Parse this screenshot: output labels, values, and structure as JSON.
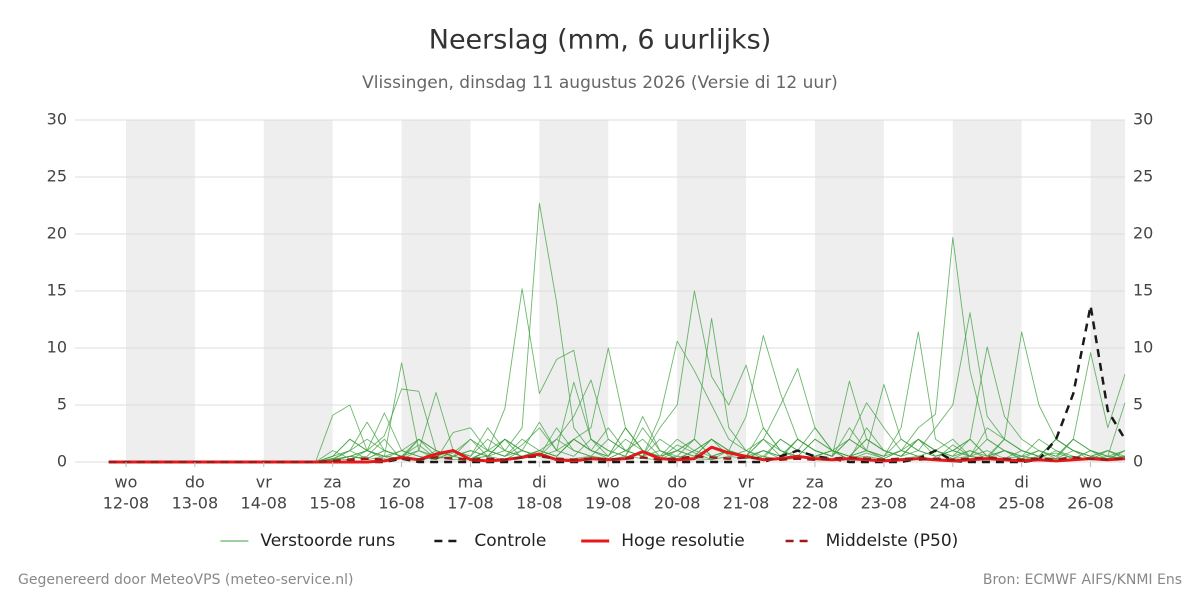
{
  "chart_data": {
    "type": "line",
    "title": "Neerslag (mm, 6 uurlijks)",
    "subtitle": "Vlissingen, dinsdag 11 augustus 2026 (Versie di 12 uur)",
    "footer_left": "Gegenereerd door MeteoVPS (meteo-service.nl)",
    "footer_right": "Bron: ECMWF AIFS/KNMI Ens",
    "xlim": [
      11.26,
      26.5
    ],
    "ylim": [
      0,
      30
    ],
    "yticks": [
      0,
      5,
      10,
      15,
      20,
      25,
      30
    ],
    "right_axis_labels": true,
    "grid": true,
    "shade_alternate_days": true,
    "xticks": [
      {
        "value": 12,
        "label": "12-08"
      },
      {
        "value": 13,
        "label": "13-08"
      },
      {
        "value": 14,
        "label": "14-08"
      },
      {
        "value": 15,
        "label": "15-08"
      },
      {
        "value": 16,
        "label": "16-08"
      },
      {
        "value": 17,
        "label": "17-08"
      },
      {
        "value": 18,
        "label": "18-08"
      },
      {
        "value": 19,
        "label": "19-08"
      },
      {
        "value": 20,
        "label": "20-08"
      },
      {
        "value": 21,
        "label": "21-08"
      },
      {
        "value": 22,
        "label": "22-08"
      },
      {
        "value": 23,
        "label": "23-08"
      },
      {
        "value": 24,
        "label": "24-08"
      },
      {
        "value": 25,
        "label": "25-08"
      },
      {
        "value": 26,
        "label": "26-08"
      }
    ],
    "xtick_weekdays": [
      "wo",
      "do",
      "vr",
      "za",
      "zo",
      "ma",
      "di",
      "wo",
      "do",
      "vr",
      "za",
      "zo",
      "ma",
      "di",
      "wo"
    ],
    "x": [
      11.75,
      12,
      12.25,
      12.5,
      12.75,
      13,
      13.25,
      13.5,
      13.75,
      14,
      14.25,
      14.5,
      14.75,
      15,
      15.25,
      15.5,
      15.75,
      16,
      16.25,
      16.5,
      16.75,
      17,
      17.25,
      17.5,
      17.75,
      18,
      18.25,
      18.5,
      18.75,
      19,
      19.25,
      19.5,
      19.75,
      20,
      20.25,
      20.5,
      20.75,
      21,
      21.25,
      21.5,
      21.75,
      22,
      22.25,
      22.5,
      22.75,
      23,
      23.25,
      23.5,
      23.75,
      24,
      24.25,
      24.5,
      24.75,
      25,
      25.25,
      25.5,
      25.75,
      26,
      26.25,
      26.5
    ],
    "legend_position": "bottom",
    "series": [
      {
        "name": "Verstoorde runs",
        "color": "#3c9f3c",
        "style": "thin",
        "members": [
          [
            0,
            0,
            0,
            0,
            0,
            0,
            0,
            0,
            0,
            0,
            0,
            0,
            0,
            0.2,
            1,
            2,
            1,
            0.5,
            1.5,
            0.3,
            0.8,
            2,
            0.5,
            1,
            3,
            22.7,
            14,
            3,
            1,
            0.5,
            2,
            1,
            0.3,
            1.5,
            0.8,
            0.2,
            1,
            0.5,
            2,
            1,
            0.3,
            0.5,
            1,
            0.2,
            0.8,
            0.3,
            1,
            0.5,
            0.2,
            1.5,
            0.5,
            0.3,
            1,
            0.2,
            0.5,
            0.8,
            0.3,
            1,
            0.2,
            0.5
          ],
          [
            0,
            0,
            0,
            0,
            0,
            0,
            0,
            0,
            0,
            0,
            0,
            0,
            0,
            4.1,
            5,
            1,
            0.5,
            0.3,
            2,
            1,
            0.5,
            0.2,
            1,
            0.5,
            1.5,
            3,
            1,
            7,
            2,
            0.5,
            3,
            1,
            0.2,
            1,
            2,
            0.5,
            1,
            0.3,
            1,
            0.5,
            2,
            1,
            0.5,
            2,
            1,
            0.5,
            1,
            3,
            4.2,
            19.7,
            8,
            2,
            1,
            0.5,
            2,
            1,
            0.3,
            1,
            0.5,
            5.2
          ],
          [
            0,
            0,
            0,
            0,
            0,
            0,
            0,
            0,
            0,
            0,
            0,
            0,
            0,
            0.5,
            2,
            1,
            4.3,
            1,
            0.5,
            0.2,
            2.6,
            3,
            1,
            4.7,
            15.2,
            6,
            9,
            9.8,
            2,
            1,
            0.5,
            3,
            1,
            0.2,
            1,
            2,
            0.5,
            1,
            0.3,
            2,
            1,
            0.5,
            1,
            0.2,
            3,
            1,
            0.5,
            2,
            1,
            0.3,
            1,
            0.5,
            2,
            1,
            0.5,
            0.3,
            1,
            0.2,
            0.5,
            1
          ],
          [
            0,
            0,
            0,
            0,
            0,
            0,
            0,
            0,
            0,
            0,
            0,
            0,
            0,
            1,
            0.3,
            0.5,
            2,
            0.2,
            1,
            0.5,
            1,
            0.3,
            0.5,
            2,
            1,
            0.5,
            3,
            1,
            0.5,
            2,
            1,
            0.5,
            3,
            5,
            15,
            7.5,
            5,
            8.5,
            3,
            1,
            0.5,
            2,
            1,
            0.5,
            1,
            0.3,
            1,
            2,
            0.5,
            1,
            0.5,
            2,
            1,
            0.5,
            0.3,
            1,
            0.5,
            0.2,
            1,
            0.5
          ],
          [
            0,
            0,
            0,
            0,
            0,
            0,
            0,
            0,
            0,
            0,
            0,
            0,
            0,
            0.3,
            1,
            3.5,
            1,
            0.5,
            0.2,
            1,
            0.5,
            2,
            1,
            0.5,
            1,
            3.5,
            1,
            0.5,
            2,
            1,
            0.5,
            4,
            1,
            0.5,
            2,
            12.6,
            3,
            1,
            2,
            0.5,
            1,
            3,
            1,
            0.5,
            2,
            1,
            0.5,
            1,
            3,
            5,
            13.1,
            4,
            2,
            1,
            0.5,
            2,
            1,
            0.5,
            0.3,
            1
          ],
          [
            0,
            0,
            0,
            0,
            0,
            0,
            0,
            0,
            0,
            0,
            0,
            0,
            0,
            0.2,
            0.5,
            1,
            2.3,
            6.4,
            6.2,
            1,
            0.5,
            1,
            0.5,
            2,
            0.3,
            1,
            2,
            1,
            0.5,
            0.3,
            1,
            2,
            0.5,
            1,
            0.5,
            2,
            1,
            0.5,
            1,
            0.3,
            2,
            1,
            0.5,
            2,
            1,
            0.5,
            3,
            11.4,
            2,
            1,
            0.5,
            3,
            2,
            11.4,
            5,
            2,
            1,
            0.5,
            1,
            0.3
          ],
          [
            0,
            0,
            0,
            0,
            0,
            0,
            0,
            0,
            0,
            0,
            0,
            0,
            0,
            0.5,
            1,
            0.3,
            1,
            0.5,
            2,
            1,
            0.5,
            0.2,
            1,
            2,
            1,
            0.5,
            2,
            4,
            7.2,
            2,
            1,
            0.5,
            1,
            0.3,
            1,
            2,
            1,
            4,
            11.1,
            6,
            2,
            1,
            0.5,
            3,
            1,
            0.5,
            2,
            1,
            0.5,
            1,
            2,
            0.5,
            1,
            0.3,
            1,
            0.5,
            2,
            1,
            0.5,
            0.2
          ],
          [
            0,
            0,
            0,
            0,
            0,
            0,
            0,
            0,
            0,
            0,
            0,
            0,
            0,
            0.2,
            0.5,
            0.3,
            1,
            0.5,
            1,
            0.3,
            0.5,
            1,
            0.5,
            2,
            1,
            0.5,
            1,
            2,
            1,
            3,
            1,
            0.5,
            4,
            10.6,
            8,
            5,
            2,
            1,
            0.5,
            2,
            1,
            0.5,
            1,
            2,
            5.2,
            3,
            1,
            0.5,
            1,
            2,
            0.5,
            1,
            0.3,
            1,
            0.5,
            2,
            1,
            0.5,
            1,
            0.3
          ],
          [
            0,
            0,
            0,
            0,
            0,
            0,
            0,
            0,
            0,
            0,
            0,
            0,
            0,
            0.3,
            0.2,
            1,
            0.5,
            1,
            2,
            0.5,
            1,
            0.3,
            1,
            0.5,
            2,
            1,
            0.5,
            2,
            3,
            10,
            3,
            1,
            0.5,
            2,
            1,
            0.5,
            1,
            0.3,
            1,
            0.5,
            2,
            1,
            0.5,
            7.1,
            2,
            1,
            0.5,
            2,
            1,
            0.5,
            1,
            0.3,
            2,
            1,
            0.5,
            2,
            1,
            0.5,
            0.2,
            1
          ],
          [
            0,
            0,
            0,
            0,
            0,
            0,
            0,
            0,
            0,
            0,
            0,
            0,
            0,
            0.5,
            2,
            1,
            0.5,
            8.7,
            1,
            6.1,
            1,
            0.5,
            3,
            1,
            0.5,
            1,
            0.5,
            2,
            1,
            0.3,
            1,
            0.5,
            2,
            1,
            0.5,
            2,
            1,
            0.5,
            3,
            1,
            0.5,
            2,
            1,
            0.5,
            1,
            6.8,
            2,
            1,
            0.5,
            1,
            2,
            0.5,
            1,
            0.5,
            1,
            0.3,
            2,
            1,
            0.5,
            0.3
          ],
          [
            0,
            0,
            0,
            0,
            0,
            0,
            0,
            0,
            0,
            0,
            0,
            0,
            0,
            0.2,
            0.5,
            1,
            0.3,
            1,
            0.5,
            0.2,
            1,
            0.5,
            2,
            1,
            0.5,
            1,
            0.5,
            2,
            1,
            0.5,
            3,
            1,
            0.5,
            1,
            2,
            0.5,
            1,
            0.5,
            2,
            5,
            8.2,
            3,
            1,
            0.5,
            2,
            1,
            0.5,
            2,
            1,
            0.5,
            2,
            10.1,
            4,
            2,
            1,
            0.5,
            2,
            9.6,
            3,
            7.7
          ],
          [
            0,
            0,
            0,
            0,
            0,
            0,
            0,
            0,
            0,
            0,
            0,
            0,
            0,
            0.1,
            0.5,
            0.2,
            0.5,
            0.3,
            0.1,
            0.5,
            0.2,
            0.3,
            0.5,
            0.2,
            1,
            0.5,
            0.2,
            0.3,
            0.5,
            0.2,
            0.5,
            0.3,
            0.2,
            0.5,
            0.3,
            0.2,
            0.5,
            0.3,
            0.5,
            0.2,
            0.3,
            0.5,
            0.2,
            0.3,
            0.5,
            0.2,
            0.3,
            0.5,
            0.2,
            0.3,
            0.5,
            0.2,
            0.3,
            0.5,
            0.2,
            0.3,
            0.5,
            0.2,
            0.3,
            0.5
          ]
        ]
      },
      {
        "name": "Controle",
        "color": "#1a1a1a",
        "style": "dashed",
        "values": [
          0,
          0,
          0,
          0,
          0,
          0,
          0,
          0,
          0,
          0,
          0,
          0,
          0,
          0,
          0,
          0,
          0,
          0.3,
          0,
          0,
          0,
          0,
          0,
          0,
          0,
          0,
          0,
          0,
          0,
          0,
          0,
          0,
          0,
          0,
          0,
          0,
          0,
          0,
          0,
          0.5,
          1.0,
          0.5,
          0.3,
          0,
          0,
          0,
          0,
          0.3,
          1.0,
          0.1,
          0,
          0,
          0,
          0,
          0.2,
          2,
          6,
          13.7,
          4.5,
          2
        ]
      },
      {
        "name": "Hoge resolutie",
        "color": "#e3191c",
        "style": "solid",
        "values": [
          0,
          0,
          0,
          0,
          0,
          0,
          0,
          0,
          0,
          0,
          0,
          0,
          0,
          0,
          0,
          0,
          0.1,
          0.4,
          0.2,
          0.7,
          1.0,
          0.2,
          0.1,
          0.2,
          0.4,
          0.7,
          0.2,
          0.1,
          0.3,
          0.2,
          0.3,
          0.9,
          0.3,
          0.2,
          0.3,
          1.3,
          0.8,
          0.5,
          0.2,
          0.3,
          0.5,
          0.3,
          0.2,
          0.3,
          0.2,
          0.1,
          0.2,
          0.3,
          0.2,
          0.1,
          0.2,
          0.3,
          0.2,
          0.1,
          0.2,
          0.1,
          0.2,
          0.3,
          0.2,
          0.3
        ]
      },
      {
        "name": "Middelste (P50)",
        "color": "#9e1a1a",
        "style": "dashed",
        "values": [
          0,
          0,
          0,
          0,
          0,
          0,
          0,
          0,
          0,
          0,
          0,
          0,
          0,
          0.1,
          0.2,
          0.3,
          0.2,
          0.3,
          0.2,
          0.4,
          0.3,
          0.2,
          0.3,
          0.2,
          0.4,
          0.5,
          0.3,
          0.2,
          0.3,
          0.2,
          0.3,
          0.4,
          0.2,
          0.3,
          0.5,
          0.4,
          0.3,
          0.4,
          0.3,
          0.2,
          0.3,
          0.2,
          0.3,
          0.4,
          0.3,
          0.2,
          0.3,
          0.2,
          0.3,
          0.2,
          0.3,
          0.4,
          0.3,
          0.2,
          0.3,
          0.2,
          0.4,
          0.3,
          0.2,
          0.3
        ]
      }
    ]
  }
}
